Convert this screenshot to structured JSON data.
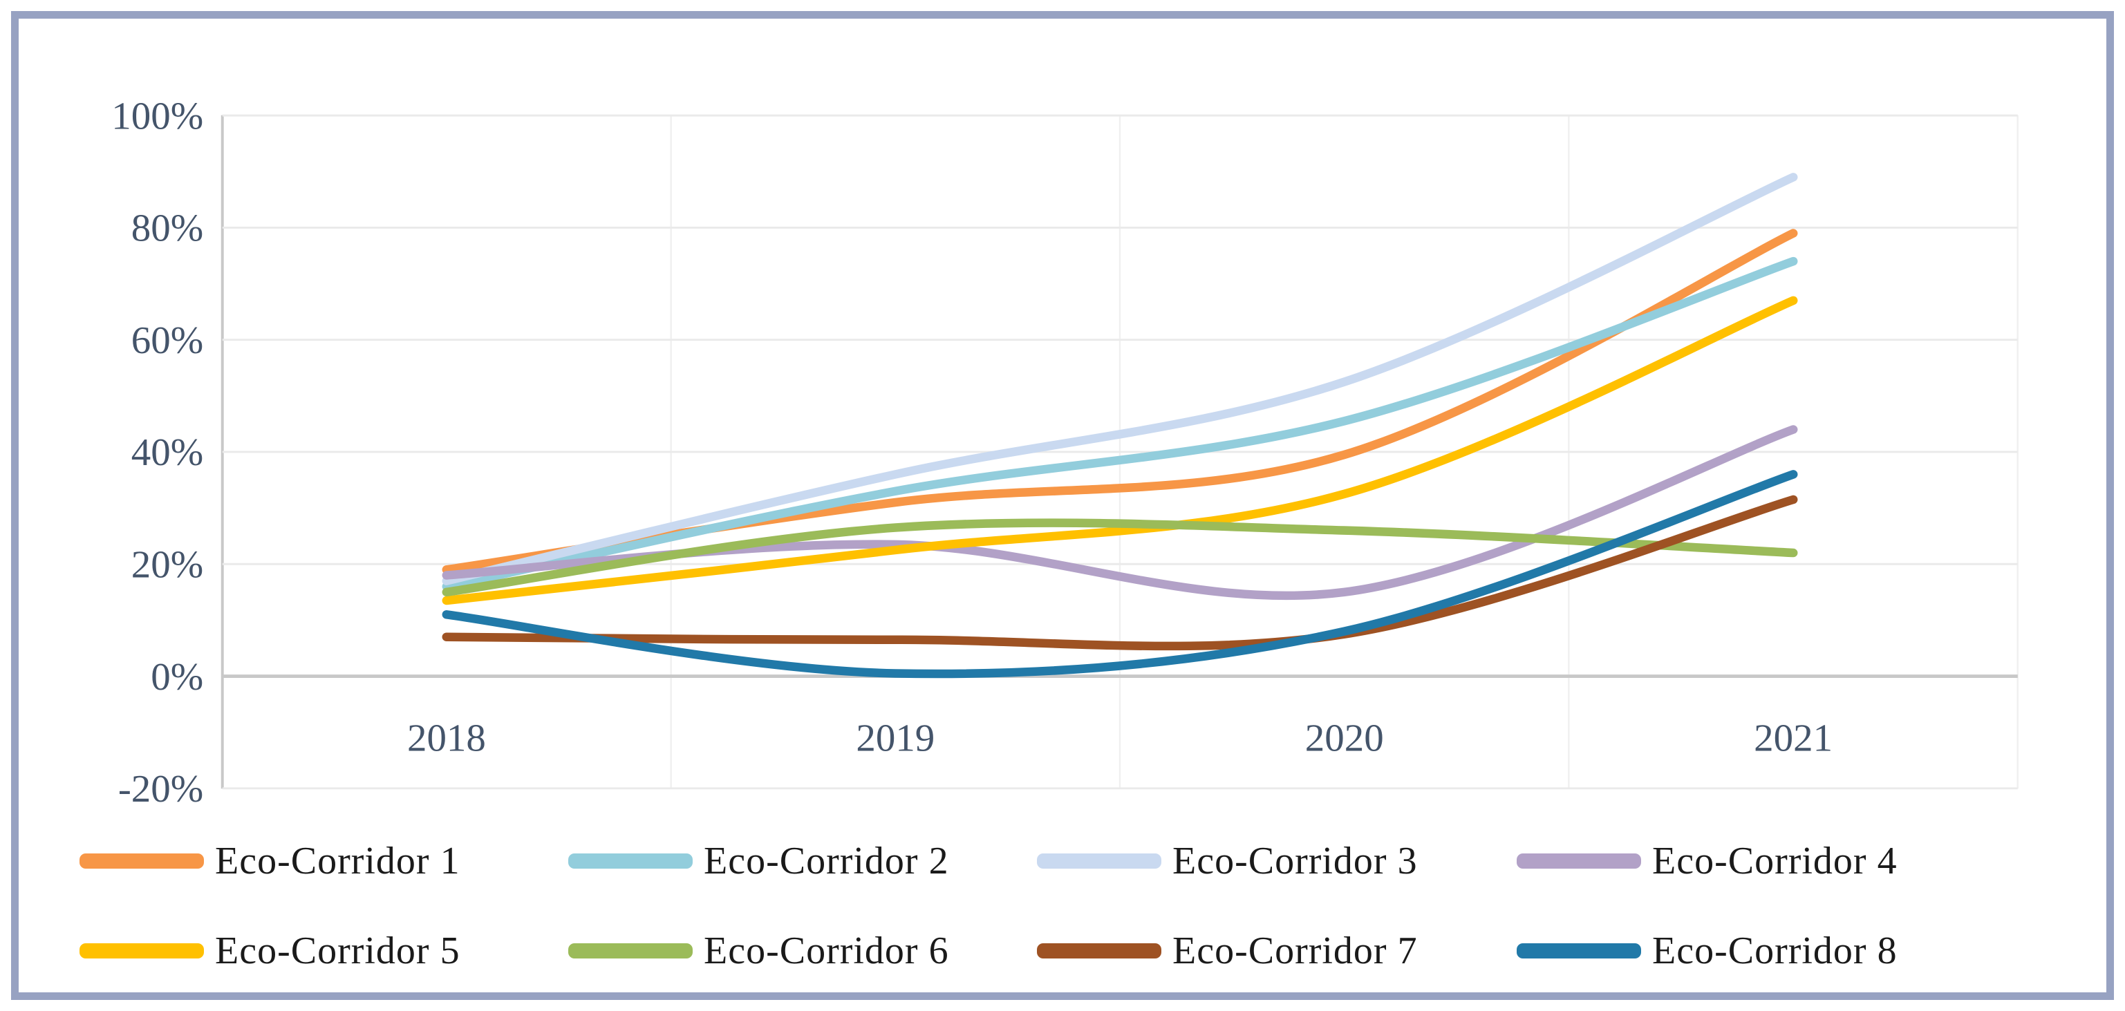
{
  "chart_data": {
    "type": "line",
    "title": "",
    "xlabel": "",
    "ylabel": "",
    "categories": [
      "2018",
      "2019",
      "2020",
      "2021"
    ],
    "series": [
      {
        "name": "Eco-Corridor 1",
        "color": "#F79646",
        "values": [
          19,
          31,
          39.5,
          79
        ]
      },
      {
        "name": "Eco-Corridor 2",
        "color": "#92CDDC",
        "values": [
          16,
          33,
          45.5,
          74
        ]
      },
      {
        "name": "Eco-Corridor 3",
        "color": "#C9D9F0",
        "values": [
          17,
          36,
          52.5,
          89
        ]
      },
      {
        "name": "Eco-Corridor 4",
        "color": "#B2A1C7",
        "values": [
          18,
          23.5,
          15,
          44
        ]
      },
      {
        "name": "Eco-Corridor 5",
        "color": "#FFC000",
        "values": [
          13.5,
          22.5,
          32.5,
          67
        ]
      },
      {
        "name": "Eco-Corridor 6",
        "color": "#9BBB59",
        "values": [
          15,
          26.5,
          26,
          22
        ]
      },
      {
        "name": "Eco-Corridor 7",
        "color": "#9E5223",
        "values": [
          7,
          6.5,
          7.5,
          31.5
        ]
      },
      {
        "name": "Eco-Corridor 8",
        "color": "#2179A8",
        "values": [
          11,
          0.5,
          8,
          36
        ]
      }
    ],
    "y_ticks": [
      {
        "label": "100%",
        "value": 100
      },
      {
        "label": "80%",
        "value": 80
      },
      {
        "label": "60%",
        "value": 60
      },
      {
        "label": "40%",
        "value": 40
      },
      {
        "label": "20%",
        "value": 20
      },
      {
        "label": "0%",
        "value": 0
      },
      {
        "label": "-20%",
        "value": -20
      }
    ],
    "ylim": [
      -20,
      100
    ],
    "grid": true,
    "legend_position": "bottom"
  },
  "style": {
    "frame_border_color": "#97A2C2",
    "axis_text_color": "#44546A",
    "legend_text_color": "#1a1a1a",
    "gridline_color": "#EAEAEA",
    "vertical_gridline_color": "#F0F0F0",
    "zero_line_color": "#C8C8C8",
    "axis_line_color": "#C8C8C8",
    "background": "#FFFFFF"
  }
}
